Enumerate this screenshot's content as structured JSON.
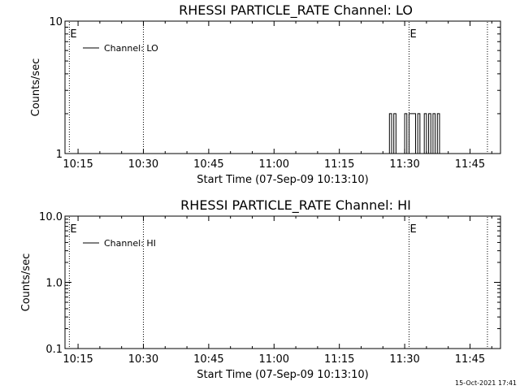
{
  "chart_data": [
    {
      "type": "line",
      "title": "RHESSI PARTICLE_RATE Channel: LO",
      "ylabel": "Counts/sec",
      "xlabel": "Start Time (07-Sep-09 10:13:10)",
      "yscale": "log",
      "ylim": [
        1,
        10
      ],
      "ytick_labels": [
        "1",
        "10"
      ],
      "xlim": [
        "10:12",
        "11:52"
      ],
      "xtick_labels": [
        "10:15",
        "10:30",
        "10:45",
        "11:00",
        "11:15",
        "11:30",
        "11:45"
      ],
      "legend": "Channel: LO",
      "legend_position": "top-left",
      "markers": [
        {
          "label": "E",
          "time": "10:13"
        },
        {
          "label": "",
          "time": "10:30"
        },
        {
          "label": "E",
          "time": "11:31"
        },
        {
          "label": "",
          "time": "11:49"
        }
      ],
      "series": [
        {
          "x": [
            "11:26",
            "11:26.5",
            "11:27",
            "11:27.5",
            "11:28",
            "11:28.5",
            "11:29",
            "11:29.5",
            "11:30",
            "11:30.5",
            "11:31",
            "11:31.5",
            "11:32",
            "11:32.5",
            "11:33",
            "11:33.5",
            "11:34",
            "11:34.5",
            "11:35",
            "11:35.5",
            "11:36",
            "11:36.5",
            "11:37",
            "11:37.5",
            "11:38"
          ],
          "values": [
            1,
            2,
            1,
            2,
            1,
            1,
            1,
            1,
            2,
            1,
            2,
            2,
            2,
            1,
            2,
            1,
            1,
            2,
            1,
            2,
            1,
            2,
            1,
            2,
            1
          ]
        }
      ]
    },
    {
      "type": "line",
      "title": "RHESSI PARTICLE_RATE Channel: HI",
      "ylabel": "Counts/sec",
      "xlabel": "Start Time (07-Sep-09 10:13:10)",
      "yscale": "log",
      "ylim": [
        0.1,
        10
      ],
      "ytick_labels": [
        "0.1",
        "1.0",
        "10.0"
      ],
      "xlim": [
        "10:12",
        "11:52"
      ],
      "xtick_labels": [
        "10:15",
        "10:30",
        "10:45",
        "11:00",
        "11:15",
        "11:30",
        "11:45"
      ],
      "legend": "Channel: HI",
      "legend_position": "top-left",
      "markers": [
        {
          "label": "E",
          "time": "10:13"
        },
        {
          "label": "",
          "time": "10:30"
        },
        {
          "label": "E",
          "time": "11:31"
        },
        {
          "label": "",
          "time": "11:49"
        }
      ],
      "series": []
    }
  ],
  "timestamp": "15-Oct-2021 17:41"
}
